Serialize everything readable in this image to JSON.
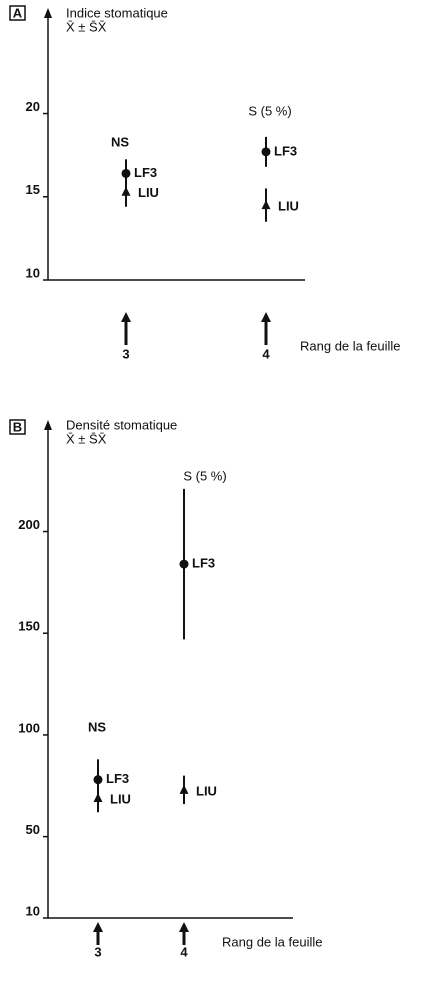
{
  "chart_data": [
    {
      "type": "errorbar",
      "panel": "A",
      "ylabel": [
        "Indice stomatique",
        "X̄ ± S̄X̄"
      ],
      "xlabel": "Rang de la feuille",
      "categories": [
        "3",
        "4"
      ],
      "annotations": [
        "NS",
        "S (5 %)"
      ],
      "ylim": [
        10,
        25.5
      ],
      "yticks": [
        10,
        15,
        20
      ],
      "series": [
        {
          "name": "LF3",
          "marker": "circle",
          "color": "#111111",
          "values": [
            16.4,
            17.7
          ],
          "errors": [
            0.85,
            0.9
          ]
        },
        {
          "name": "LIU",
          "marker": "triangle",
          "color": "#111111",
          "values": [
            15.3,
            14.5
          ],
          "errors": [
            0.9,
            1.0
          ]
        }
      ]
    },
    {
      "type": "errorbar",
      "panel": "B",
      "ylabel": [
        "Densité stomatique",
        "X̄ ± S̄X̄"
      ],
      "xlabel": "Rang de la feuille",
      "categories": [
        "3",
        "4"
      ],
      "annotations": [
        "NS",
        "S (5 %)"
      ],
      "ylim": [
        10,
        245
      ],
      "yticks": [
        10,
        50,
        100,
        150,
        200
      ],
      "series": [
        {
          "name": "LF3",
          "marker": "circle",
          "color": "#111111",
          "values": [
            78,
            184
          ],
          "errors": [
            10,
            37
          ]
        },
        {
          "name": "LIU",
          "marker": "triangle",
          "color": "#111111",
          "values": [
            69,
            73
          ],
          "errors": [
            7,
            7
          ]
        }
      ]
    }
  ]
}
